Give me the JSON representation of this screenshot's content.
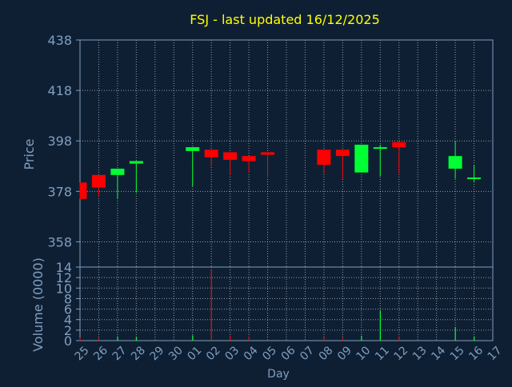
{
  "title": "FSJ - last updated 16/12/2025",
  "colors": {
    "background": "#0f1f33",
    "title": "#ffff00",
    "axis_text": "#7f9fbf",
    "frame": "#7f9fbf",
    "grid": "#ffffff",
    "up": "#00ff33",
    "down": "#ff0000"
  },
  "chart_data": [
    {
      "type": "candlestick",
      "ylabel": "Price",
      "ylim": [
        348,
        438
      ],
      "yticks": [
        438,
        418,
        398,
        378,
        358
      ],
      "grid": true,
      "x_tick_labels": [
        "25",
        "26",
        "27",
        "28",
        "29",
        "30",
        "01",
        "02",
        "03",
        "04",
        "05",
        "06",
        "07",
        "08",
        "09",
        "10",
        "11",
        "12",
        "13",
        "14",
        "15",
        "16",
        "17"
      ],
      "candles": [
        {
          "day": "25",
          "open": 381.5,
          "high": 381.5,
          "low": 375,
          "close": 375
        },
        {
          "day": "26",
          "open": 384.5,
          "high": 384.5,
          "low": 376,
          "close": 379.5
        },
        {
          "day": "27",
          "open": 384.5,
          "high": 387,
          "low": 375,
          "close": 387
        },
        {
          "day": "28",
          "open": 389,
          "high": 390,
          "low": 377.5,
          "close": 390
        },
        {
          "day": "01",
          "open": 394,
          "high": 395.5,
          "low": 380,
          "close": 395.5
        },
        {
          "day": "02",
          "open": 394.5,
          "high": 394.5,
          "low": 388,
          "close": 391.5
        },
        {
          "day": "03",
          "open": 393.5,
          "high": 393.5,
          "low": 384.5,
          "close": 390.5
        },
        {
          "day": "04",
          "open": 392,
          "high": 392,
          "low": 385.5,
          "close": 390
        },
        {
          "day": "05",
          "open": 393.5,
          "high": 393.5,
          "low": 383.5,
          "close": 392.5
        },
        {
          "day": "08",
          "open": 394.5,
          "high": 394.5,
          "low": 385,
          "close": 388.5
        },
        {
          "day": "09",
          "open": 394.5,
          "high": 394.5,
          "low": 383,
          "close": 392
        },
        {
          "day": "10",
          "open": 385.5,
          "high": 396.5,
          "low": 385.5,
          "close": 396.5
        },
        {
          "day": "11",
          "open": 395,
          "high": 396.5,
          "low": 384,
          "close": 395.5
        },
        {
          "day": "12",
          "open": 397.5,
          "high": 397.5,
          "low": 385,
          "close": 395.5
        },
        {
          "day": "15",
          "open": 387,
          "high": 398,
          "low": 383,
          "close": 392
        },
        {
          "day": "16",
          "open": 383.5,
          "high": 388.5,
          "low": 381.5,
          "close": 383.5
        }
      ]
    },
    {
      "type": "bar",
      "xlabel": "Day",
      "ylabel": "Volume (0000)",
      "ylim": [
        0,
        14
      ],
      "yticks": [
        14,
        12,
        10,
        8,
        6,
        4,
        2,
        0
      ],
      "grid": true,
      "categories": [
        "25",
        "26",
        "27",
        "28",
        "01",
        "02",
        "03",
        "04",
        "05",
        "08",
        "09",
        "10",
        "11",
        "12",
        "15",
        "16"
      ],
      "values": [
        0.6,
        0.5,
        0.8,
        0.7,
        1.0,
        13.5,
        0.9,
        0.8,
        0.2,
        0.6,
        0.5,
        0.9,
        5.7,
        0.7,
        2.6,
        0.8
      ],
      "direction": [
        "down",
        "down",
        "up",
        "up",
        "up",
        "down",
        "down",
        "down",
        "down",
        "down",
        "down",
        "up",
        "up",
        "down",
        "up",
        "up"
      ]
    }
  ]
}
